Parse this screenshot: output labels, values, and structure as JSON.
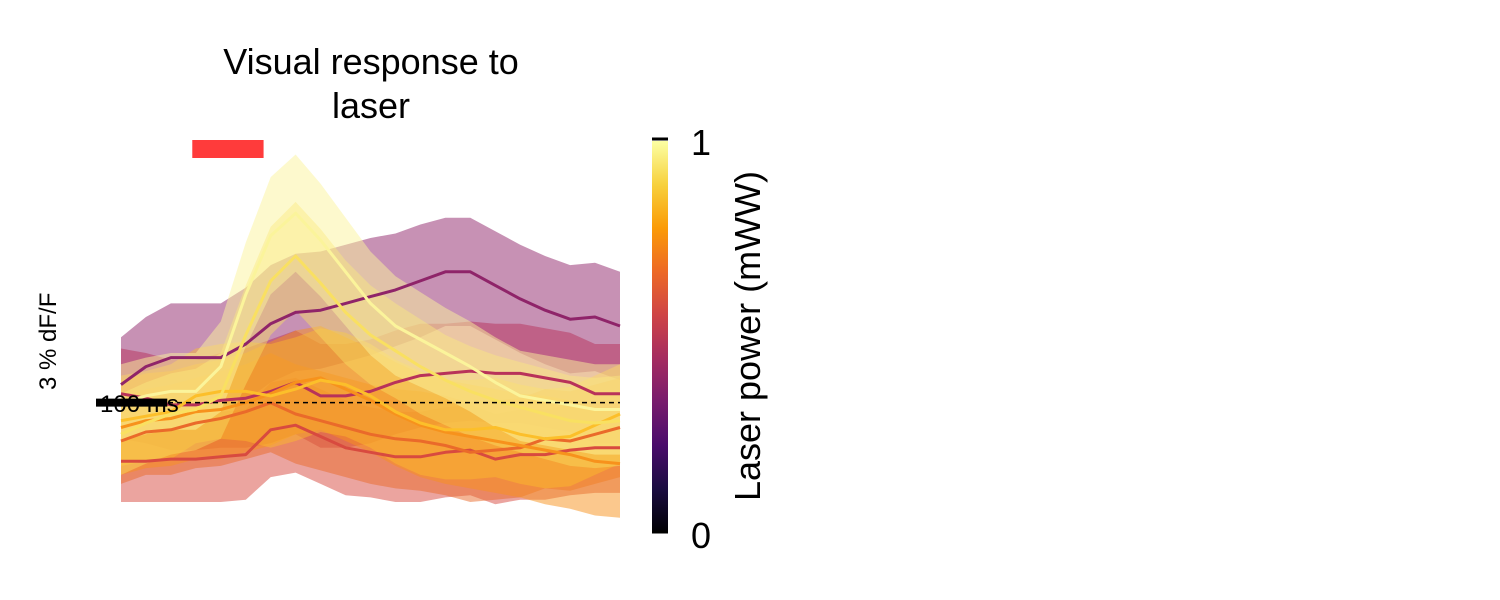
{
  "chart_data": {
    "type": "line",
    "title_line1": "Visual response to",
    "title_line2": "laser",
    "x_scale_bar_label": "100 ms",
    "y_scale_bar_label": "3 % dF/F",
    "x_range_ms": [
      0,
      700
    ],
    "y_range": [
      -5.2,
      11.2
    ],
    "laser_pulse": {
      "start_ms": 100,
      "end_ms": 200,
      "color": "#ff3b3b"
    },
    "baseline_y": 0,
    "colorbar": {
      "label": "Laser power (mWW)",
      "min_label": "0",
      "max_label": "1",
      "colormap": "inferno",
      "stops": [
        "#000004",
        "#1b0c41",
        "#4a0c6b",
        "#781c6d",
        "#a52c60",
        "#cf4446",
        "#ed6925",
        "#fb9b06",
        "#f7d13d",
        "#fcffa4"
      ]
    },
    "x": [
      0,
      35,
      70,
      105,
      140,
      175,
      210,
      245,
      280,
      315,
      350,
      385,
      420,
      455,
      490,
      525,
      560,
      595,
      630,
      665,
      700
    ],
    "series": [
      {
        "color": "#8f2469",
        "alpha_fill": 0.5,
        "mean": [
          0.8,
          1.6,
          2.0,
          2.0,
          2.0,
          2.6,
          3.5,
          4.0,
          4.1,
          4.4,
          4.7,
          5.0,
          5.4,
          5.8,
          5.8,
          5.2,
          4.6,
          4.1,
          3.7,
          3.8,
          3.4
        ],
        "sem": [
          2.1,
          2.2,
          2.4,
          2.4,
          2.4,
          2.5,
          2.6,
          2.6,
          2.6,
          2.6,
          2.6,
          2.5,
          2.5,
          2.4,
          2.4,
          2.4,
          2.4,
          2.4,
          2.4,
          2.4,
          2.4
        ]
      },
      {
        "color": "#b8325a",
        "alpha_fill": 0.5,
        "mean": [
          0.4,
          0.2,
          -0.1,
          -0.1,
          0.1,
          0.2,
          0.5,
          0.9,
          0.3,
          0.3,
          0.5,
          0.9,
          1.2,
          1.3,
          1.4,
          1.3,
          1.3,
          1.1,
          0.9,
          0.4,
          0.4
        ],
        "sem": [
          2.0,
          2.0,
          2.0,
          2.0,
          2.1,
          2.2,
          2.3,
          2.3,
          2.3,
          2.3,
          2.3,
          2.3,
          2.3,
          2.2,
          2.2,
          2.2,
          2.2,
          2.2,
          2.2,
          2.2,
          2.2
        ]
      },
      {
        "color": "#d84a3f",
        "alpha_fill": 0.5,
        "mean": [
          -2.6,
          -2.6,
          -2.5,
          -2.5,
          -2.4,
          -2.3,
          -1.2,
          -1.0,
          -1.5,
          -2.0,
          -2.2,
          -2.4,
          -2.4,
          -2.2,
          -2.1,
          -2.5,
          -2.3,
          -2.3,
          -2.1,
          -2.0,
          -2.0
        ],
        "sem": [
          1.8,
          1.8,
          1.9,
          1.9,
          2.0,
          2.0,
          2.1,
          2.1,
          2.1,
          2.1,
          2.0,
          2.0,
          2.0,
          2.0,
          2.0,
          2.0,
          2.0,
          2.0,
          2.0,
          2.0,
          2.0
        ]
      },
      {
        "color": "#ea6a2a",
        "alpha_fill": 0.5,
        "mean": [
          -1.7,
          -1.3,
          -1.2,
          -0.9,
          -0.7,
          -0.4,
          0.0,
          -0.5,
          -0.8,
          -1.1,
          -1.4,
          -1.6,
          -1.7,
          -1.9,
          -2.2,
          -2.1,
          -2.0,
          -1.6,
          -1.7,
          -1.4,
          -1.1
        ],
        "sem": [
          1.9,
          1.9,
          2.0,
          2.0,
          2.1,
          2.1,
          2.2,
          2.2,
          2.2,
          2.2,
          2.2,
          2.2,
          2.2,
          2.2,
          2.2,
          2.2,
          2.2,
          2.2,
          2.2,
          2.2,
          2.2
        ]
      },
      {
        "color": "#f7921c",
        "alpha_fill": 0.5,
        "mean": [
          -1.1,
          -0.8,
          -0.7,
          -0.4,
          -0.3,
          0.0,
          0.4,
          0.9,
          1.1,
          0.6,
          0.1,
          -0.5,
          -1.0,
          -1.3,
          -1.5,
          -1.7,
          -1.9,
          -2.1,
          -2.3,
          -2.6,
          -2.7
        ],
        "sem": [
          2.1,
          2.1,
          2.1,
          2.1,
          2.2,
          2.2,
          2.3,
          2.3,
          2.3,
          2.3,
          2.3,
          2.3,
          2.3,
          2.3,
          2.3,
          2.3,
          2.3,
          2.4,
          2.4,
          2.4,
          2.4
        ]
      },
      {
        "color": "#fcbf2a",
        "alpha_fill": 0.45,
        "mean": [
          -0.8,
          -0.6,
          -0.4,
          0.3,
          0.5,
          0.5,
          0.3,
          0.6,
          1.0,
          0.8,
          0.3,
          -0.4,
          -0.9,
          -1.2,
          -1.2,
          -1.1,
          -1.4,
          -1.6,
          -1.5,
          -1.0,
          -0.5
        ],
        "sem": [
          2.0,
          2.0,
          2.1,
          2.1,
          2.1,
          2.2,
          2.3,
          2.3,
          2.3,
          2.3,
          2.3,
          2.3,
          2.3,
          2.2,
          2.2,
          2.2,
          2.2,
          2.2,
          2.2,
          2.2,
          2.2
        ]
      },
      {
        "color": "#f9e061",
        "alpha_fill": 0.45,
        "mean": [
          -1.4,
          -0.9,
          -0.5,
          -0.3,
          0.3,
          3.0,
          5.4,
          6.5,
          5.3,
          4.0,
          3.0,
          2.3,
          1.6,
          1.0,
          0.5,
          0.1,
          -0.2,
          -0.5,
          -0.8,
          -0.9,
          -0.8
        ],
        "sem": [
          1.8,
          1.8,
          1.8,
          1.8,
          1.9,
          2.2,
          2.4,
          2.4,
          2.4,
          2.3,
          2.2,
          2.1,
          2.1,
          2.0,
          2.0,
          2.0,
          2.0,
          2.0,
          2.0,
          2.0,
          2.0
        ]
      },
      {
        "color": "#fbf49b",
        "alpha_fill": 0.5,
        "mean": [
          0.0,
          0.3,
          0.5,
          0.5,
          1.6,
          4.8,
          7.4,
          8.4,
          7.2,
          5.8,
          4.4,
          3.4,
          2.8,
          2.2,
          1.6,
          0.9,
          0.3,
          0.1,
          -0.1,
          -0.3,
          -0.3
        ],
        "sem": [
          1.7,
          1.7,
          1.7,
          1.7,
          2.0,
          2.3,
          2.6,
          2.6,
          2.5,
          2.4,
          2.3,
          2.2,
          2.1,
          2.0,
          2.0,
          2.0,
          2.0,
          2.0,
          2.0,
          2.0,
          2.0
        ]
      }
    ]
  }
}
